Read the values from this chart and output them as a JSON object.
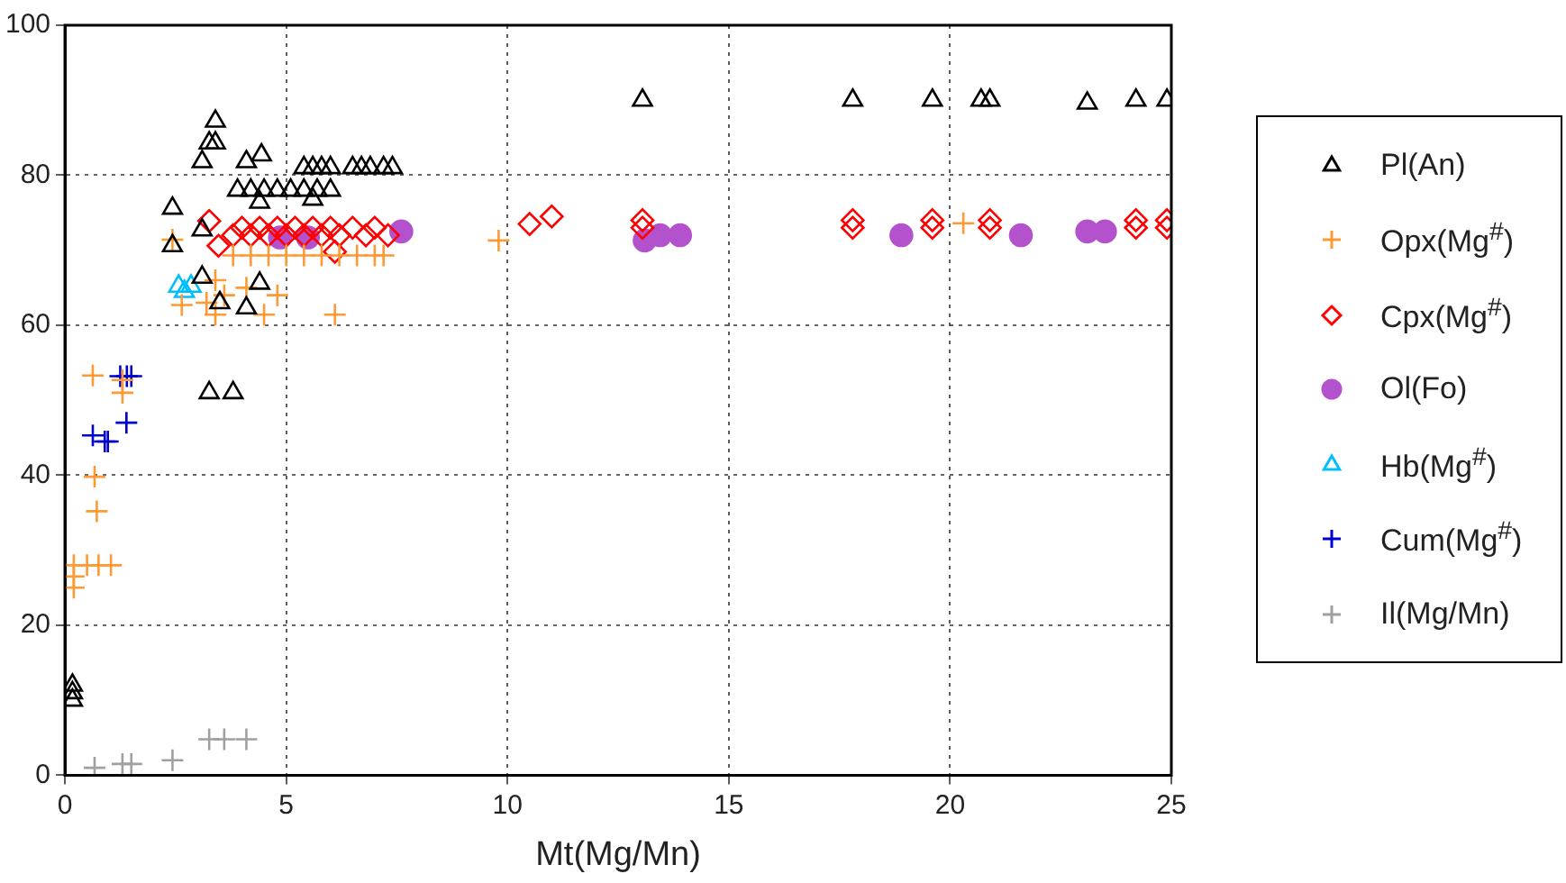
{
  "chart_data": {
    "type": "scatter",
    "xlabel": "Mt(Mg/Mn)",
    "xlim": [
      0,
      25
    ],
    "xticks": [
      0,
      5,
      10,
      15,
      20,
      25
    ],
    "ylim": [
      0,
      100
    ],
    "yticks": [
      0,
      20,
      40,
      60,
      80,
      100
    ],
    "grid": true,
    "legend": "right",
    "series": [
      {
        "name": "Pl(An)",
        "color": "#000000",
        "marker": "triangle",
        "x": [
          3.4,
          3.26,
          3.4,
          3.1,
          4.1,
          4.44,
          5.4,
          5.6,
          5.8,
          6.0,
          6.5,
          6.7,
          6.9,
          7.2,
          7.4,
          3.9,
          4.2,
          4.5,
          4.8,
          5.1,
          5.4,
          5.7,
          6.0,
          5.6,
          2.43,
          2.43,
          3.1,
          4.4,
          3.1,
          3.5,
          4.4,
          4.1,
          3.26,
          3.8,
          0.17,
          0.17,
          0.17,
          13.05,
          17.8,
          19.6,
          20.7,
          20.9,
          23.1,
          24.2,
          24.9
        ],
        "values": [
          87.2,
          84.3,
          84.3,
          81.8,
          81.8,
          82.7,
          81,
          81,
          81,
          81,
          81,
          81,
          81,
          81,
          81,
          78,
          78,
          78,
          78,
          78,
          78,
          78,
          78,
          76.8,
          75.6,
          70.6,
          72.7,
          76.4,
          66.4,
          63,
          65.6,
          62.3,
          51,
          51,
          12,
          11,
          10,
          90,
          90,
          90,
          90,
          90,
          89.6,
          90,
          90
        ]
      },
      {
        "name": "Opx(Mg$^{#}$)",
        "color": "#ff9933",
        "marker": "cross",
        "x": [
          3.8,
          4.2,
          4.6,
          5.0,
          5.4,
          5.8,
          6.2,
          6.6,
          7.0,
          7.2,
          2.43,
          2.64,
          3.2,
          3.4,
          3.6,
          4.1,
          4.8,
          4.5,
          6.1,
          3.4,
          0.63,
          1.3,
          1.3,
          0.67,
          0.72,
          0.2,
          0.2,
          0.2,
          0.5,
          0.76,
          1.04,
          9.8,
          20.3
        ],
        "values": [
          69.3,
          69.3,
          69.3,
          69.3,
          69.3,
          69.3,
          69.3,
          69.3,
          69.3,
          69.3,
          71.4,
          62.7,
          63,
          66,
          64,
          65,
          64,
          61.4,
          61.4,
          61.4,
          53.3,
          51,
          52.7,
          39.8,
          35.2,
          25,
          26.5,
          28,
          28,
          28,
          28,
          71.3,
          73.6
        ]
      },
      {
        "name": "Cpx(Mg$^{#}$)",
        "color": "#ff0000",
        "marker": "diamond",
        "x": [
          3.26,
          3.47,
          6.1,
          3.8,
          4.0,
          4.2,
          4.4,
          4.6,
          4.8,
          5.0,
          5.2,
          5.4,
          5.6,
          5.8,
          6.0,
          6.2,
          6.5,
          6.8,
          7.0,
          7.3,
          10.5,
          11.0,
          13.05,
          13.05,
          17.8,
          17.8,
          19.6,
          19.6,
          20.9,
          20.9,
          24.2,
          24.2,
          24.9,
          24.9
        ],
        "values": [
          73.9,
          70.6,
          69.8,
          72,
          73,
          72,
          73,
          72,
          73,
          72,
          73,
          72,
          73,
          72,
          73,
          72,
          73,
          72,
          73,
          72,
          73.5,
          74.5,
          74,
          73,
          74,
          73,
          74,
          73,
          74,
          73,
          74,
          73,
          74,
          73
        ]
      },
      {
        "name": "Ol(Fo)",
        "color": "#b452cd",
        "marker": "circle",
        "x": [
          4.86,
          5.49,
          7.6,
          13.1,
          13.45,
          13.9,
          18.9,
          21.6,
          23.1,
          23.5
        ],
        "values": [
          71.7,
          71.7,
          72.5,
          71.3,
          72,
          72,
          72,
          72,
          72.5,
          72.5
        ]
      },
      {
        "name": "Hb(Mg$^{#}$)",
        "color": "#00bfff",
        "marker": "triangle",
        "x": [
          2.57,
          2.85,
          2.7
        ],
        "values": [
          65.2,
          65.2,
          64.5
        ]
      },
      {
        "name": "Cum(Mg$^{#}$)",
        "color": "#0000cc",
        "marker": "cross",
        "x": [
          0.63,
          0.97,
          0.9,
          1.39,
          1.25,
          1.4,
          1.5
        ],
        "values": [
          45.3,
          44.5,
          44.5,
          47,
          53.2,
          53.2,
          53.2
        ]
      },
      {
        "name": "Il(Mg/Mn)",
        "color": "#a0a0a0",
        "marker": "cross",
        "x": [
          0.67,
          1.3,
          1.5,
          2.43,
          3.26,
          3.6,
          4.1
        ],
        "values": [
          1,
          1.5,
          1.5,
          2,
          4.8,
          4.8,
          4.8
        ]
      }
    ]
  }
}
